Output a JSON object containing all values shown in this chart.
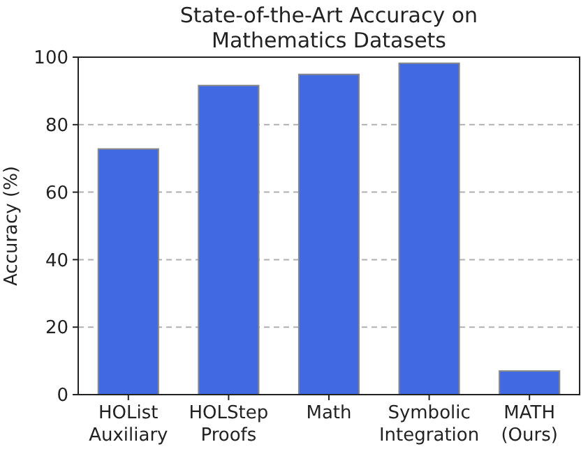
{
  "chart_data": {
    "type": "bar",
    "title": "State-of-the-Art Accuracy on\nMathematics Datasets",
    "ylabel": "Accuracy (%)",
    "categories": [
      "HOList\nAuxiliary",
      "HOLStep\nProofs",
      "Math",
      "Symbolic\nIntegration",
      "MATH\n(Ours)"
    ],
    "values": [
      72.8,
      91.6,
      94.9,
      98.2,
      7
    ],
    "color": "#4169e1",
    "ylim": [
      0,
      100
    ],
    "yticks": [
      0,
      20,
      40,
      60,
      80,
      100
    ],
    "grid": "y"
  }
}
